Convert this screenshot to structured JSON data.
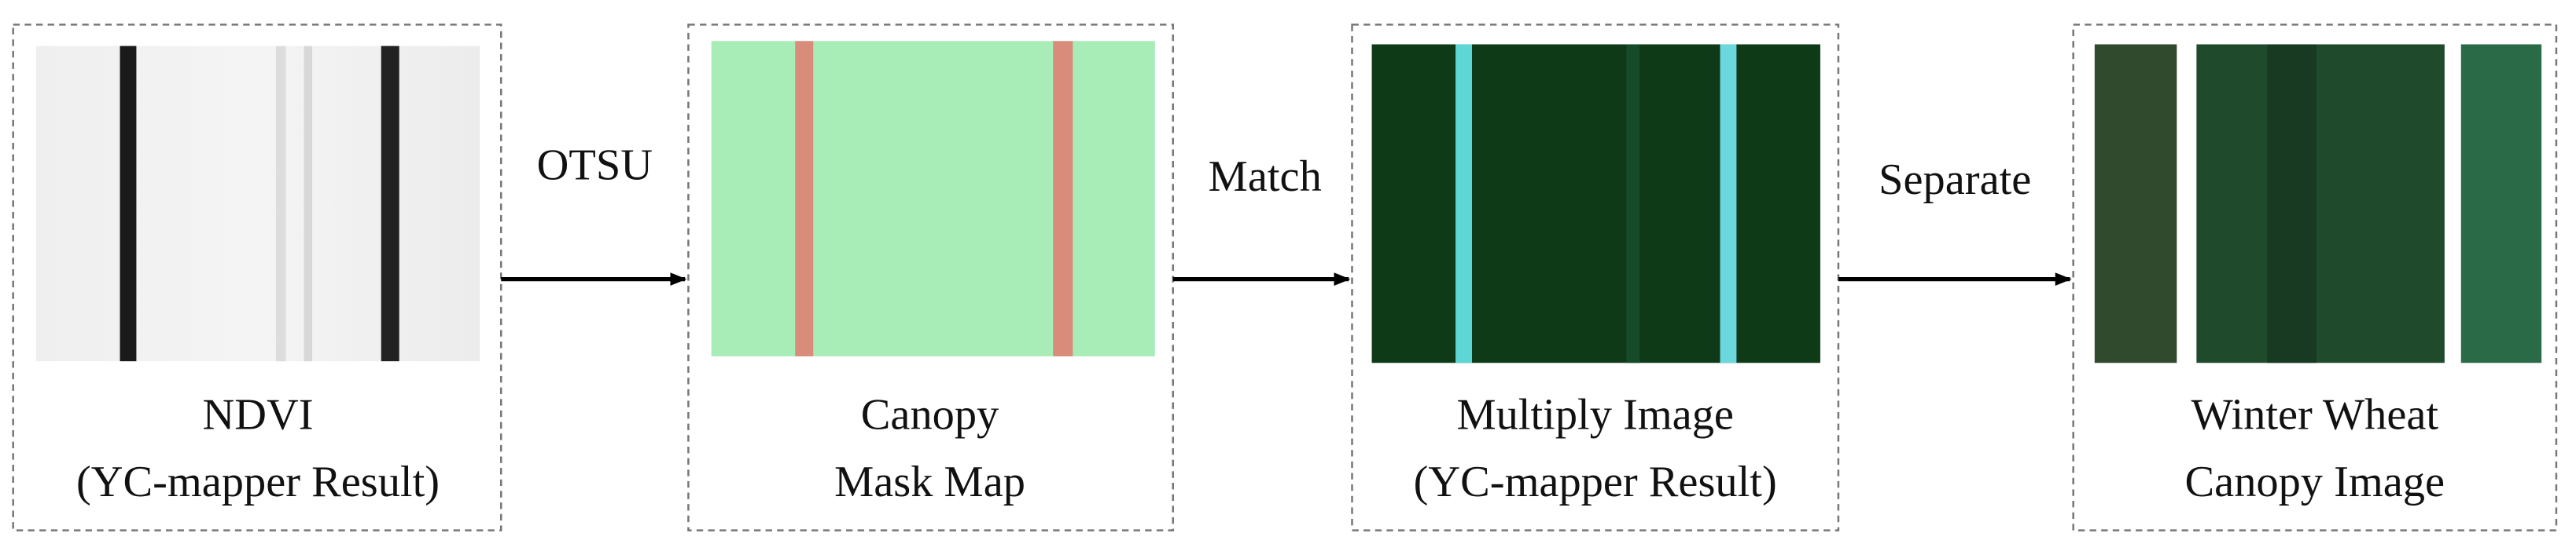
{
  "nodes": [
    {
      "lines": [
        "NDVI",
        "(YC-mapper Result)"
      ]
    },
    {
      "lines": [
        "Canopy",
        "Mask Map"
      ]
    },
    {
      "lines": [
        "Multiply Image",
        "(YC-mapper Result)"
      ]
    },
    {
      "lines": [
        "Winter Wheat",
        "Canopy Image"
      ]
    }
  ],
  "edges": [
    {
      "label": "OTSU"
    },
    {
      "label": "Match"
    },
    {
      "label": "Separate"
    }
  ]
}
